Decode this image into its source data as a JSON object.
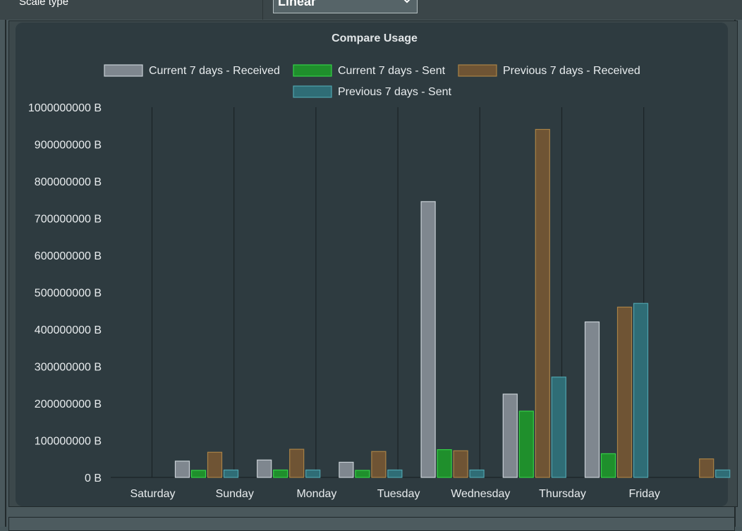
{
  "controls": {
    "scale_type_label": "Scale type",
    "scale_type_value": "Linear"
  },
  "colors": {
    "current_received": "#7f878f",
    "current_sent": "#1f8f2c",
    "previous_received": "#6f5434",
    "previous_sent": "#2f6d76"
  },
  "chart_data": {
    "type": "bar",
    "title": "Compare Usage",
    "categories": [
      "Saturday",
      "Sunday",
      "Monday",
      "Tuesday",
      "Wednesday",
      "Thursday",
      "Friday"
    ],
    "ylim": [
      0,
      1000000000
    ],
    "yticks": [
      "0 B",
      "100000000 B",
      "200000000 B",
      "300000000 B",
      "400000000 B",
      "500000000 B",
      "600000000 B",
      "700000000 B",
      "800000000 B",
      "900000000 B",
      "1000000000 B"
    ],
    "series": [
      {
        "name": "Current 7 days - Received",
        "values": [
          44000000,
          47000000,
          41000000,
          745000000,
          225000000,
          420000000,
          0
        ]
      },
      {
        "name": "Current 7 days - Sent",
        "values": [
          19000000,
          20000000,
          19000000,
          75000000,
          179000000,
          64000000,
          0
        ]
      },
      {
        "name": "Previous 7 days - Received",
        "values": [
          68000000,
          76000000,
          70000000,
          72000000,
          940000000,
          460000000,
          50000000
        ]
      },
      {
        "name": "Previous 7 days - Sent",
        "values": [
          20000000,
          20000000,
          20000000,
          20000000,
          271000000,
          470000000,
          20000000
        ]
      }
    ],
    "legend": "top-center",
    "grid": "vertical"
  }
}
